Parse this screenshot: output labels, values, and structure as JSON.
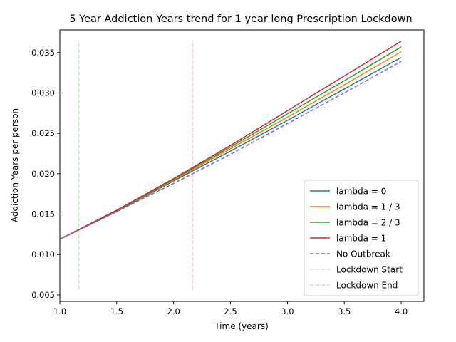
{
  "chart_data": {
    "type": "line",
    "title": "5 Year Addiction Years trend for 1 year long Prescription Lockdown",
    "xlabel": "Time (years)",
    "ylabel": "Addiction Years per person",
    "xlim": [
      1.0,
      4.2
    ],
    "ylim": [
      0.0042,
      0.0378
    ],
    "x_ticks": [
      1.0,
      1.5,
      2.0,
      2.5,
      3.0,
      3.5,
      4.0
    ],
    "x_tick_labels": [
      "1.0",
      "1.5",
      "2.0",
      "2.5",
      "3.0",
      "3.5",
      "4.0"
    ],
    "y_ticks": [
      0.005,
      0.01,
      0.015,
      0.02,
      0.025,
      0.03,
      0.035
    ],
    "y_tick_labels": [
      "0.005",
      "0.010",
      "0.015",
      "0.020",
      "0.025",
      "0.030",
      "0.035"
    ],
    "grid": false,
    "legend_position": "lower-right",
    "series": [
      {
        "name": "lambda = 0",
        "color": "#1f77b4",
        "style": "solid",
        "x": [
          1.0,
          1.5,
          2.0,
          2.5,
          3.0,
          3.5,
          4.0
        ],
        "y": [
          0.0119,
          0.0153,
          0.0191,
          0.0228,
          0.0266,
          0.0305,
          0.0344
        ]
      },
      {
        "name": "lambda = 1 / 3",
        "color": "#ff7f0e",
        "style": "solid",
        "x": [
          1.0,
          1.5,
          2.0,
          2.5,
          3.0,
          3.5,
          4.0
        ],
        "y": [
          0.0119,
          0.0154,
          0.0192,
          0.0231,
          0.027,
          0.031,
          0.0351
        ]
      },
      {
        "name": "lambda = 2 / 3",
        "color": "#2ca02c",
        "style": "solid",
        "x": [
          1.0,
          1.5,
          2.0,
          2.5,
          3.0,
          3.5,
          4.0
        ],
        "y": [
          0.0119,
          0.0154,
          0.0193,
          0.0233,
          0.0274,
          0.0315,
          0.0357
        ]
      },
      {
        "name": "lambda = 1",
        "color": "#d62728",
        "style": "solid",
        "x": [
          1.0,
          1.5,
          2.0,
          2.5,
          3.0,
          3.5,
          4.0
        ],
        "y": [
          0.0119,
          0.0155,
          0.0194,
          0.0235,
          0.0278,
          0.0321,
          0.0364
        ]
      },
      {
        "name": "No Outbreak",
        "color": "#9467bd",
        "style": "dashed",
        "x": [
          1.0,
          1.5,
          2.0,
          2.5,
          3.0,
          3.5,
          4.0
        ],
        "y": [
          0.0119,
          0.0153,
          0.0188,
          0.0224,
          0.0262,
          0.03,
          0.0339
        ]
      },
      {
        "name": "Lockdown Start",
        "color": "#2ca02c",
        "style": "dashed",
        "alpha": 0.25,
        "x": [
          1.167,
          1.167
        ],
        "y": [
          0.0057,
          0.0365
        ]
      },
      {
        "name": "Lockdown End",
        "color": "#d62728",
        "style": "dashed",
        "alpha": 0.25,
        "x": [
          2.167,
          2.167
        ],
        "y": [
          0.0057,
          0.0365
        ]
      }
    ]
  }
}
